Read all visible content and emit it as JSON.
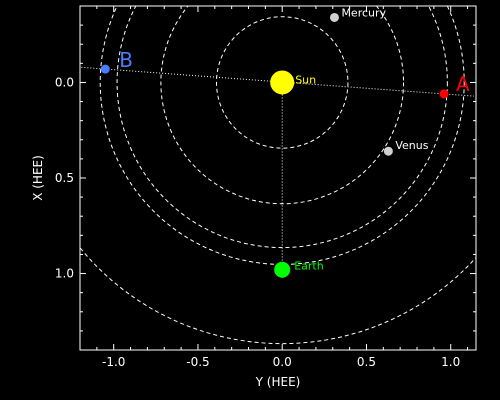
{
  "chart_data": {
    "type": "scatter",
    "xlabel": "Y (HEE)",
    "ylabel": "X (HEE)",
    "xlim": [
      -1.2,
      1.15
    ],
    "ylim": [
      1.4,
      -0.4
    ],
    "xticks": [
      "-1.0",
      "-0.5",
      "0.0",
      "0.5",
      "1.0"
    ],
    "xtick_values": [
      -1.0,
      -0.5,
      0.0,
      0.5,
      1.0
    ],
    "yticks": [
      "0.0",
      "0.5",
      "1.0"
    ],
    "ytick_values": [
      0.0,
      0.5,
      1.0
    ],
    "center": {
      "label": "Sun",
      "y_hee": 0.0,
      "x_hee": 0.0,
      "color": "#ffff00"
    },
    "bodies": [
      {
        "key": "mercury",
        "label": "Mercury",
        "y_hee": 0.31,
        "x_hee": -0.34,
        "color": "#d0d0d0",
        "label_color": "#ffffff"
      },
      {
        "key": "venus",
        "label": "Venus",
        "y_hee": 0.63,
        "x_hee": 0.36,
        "color": "#d0d0d0",
        "label_color": "#ffffff"
      },
      {
        "key": "earth",
        "label": "Earth",
        "y_hee": 0.0,
        "x_hee": 0.98,
        "color": "#00ff00",
        "label_color": "#00ff00"
      },
      {
        "key": "stereo-a",
        "label": "A",
        "y_hee": 0.96,
        "x_hee": 0.06,
        "color": "#ff0000",
        "label_color": "#ff0000"
      },
      {
        "key": "stereo-b",
        "label": "B",
        "y_hee": -1.05,
        "x_hee": -0.07,
        "color": "#4a7cff",
        "label_color": "#4a7cff"
      }
    ],
    "orbits_au": [
      0.39,
      0.72,
      0.98,
      1.08,
      1.55
    ],
    "grid": false
  }
}
